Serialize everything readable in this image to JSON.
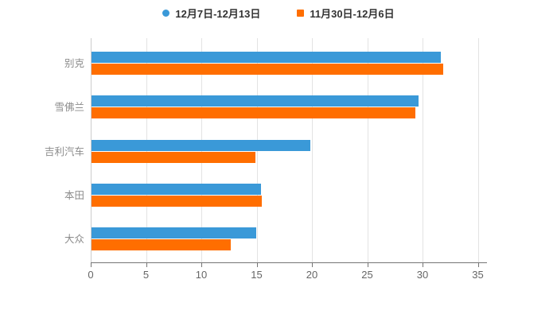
{
  "legend": {
    "items": [
      {
        "label": "12月7日-12月13日",
        "color": "#3A99D8",
        "marker": "circle"
      },
      {
        "label": "11月30日-12月6日",
        "color": "#FF6E00",
        "marker": "square"
      }
    ]
  },
  "chart_data": {
    "type": "bar",
    "orientation": "horizontal",
    "title": "",
    "categories": [
      "别克",
      "雪佛兰",
      "吉利汽车",
      "本田",
      "大众"
    ],
    "series": [
      {
        "name": "12月7日-12月13日",
        "color": "#3A99D8",
        "values": [
          31.6,
          29.6,
          19.8,
          15.3,
          14.9
        ]
      },
      {
        "name": "11月30日-12月6日",
        "color": "#FF6E00",
        "values": [
          31.8,
          29.3,
          14.8,
          15.4,
          12.6
        ]
      }
    ],
    "x_axis": {
      "min": 0,
      "max": 35,
      "tick_interval": 5,
      "ticks": [
        0,
        5,
        10,
        15,
        20,
        25,
        30,
        35
      ]
    },
    "grid": "on",
    "legend_position": "top",
    "colors": {
      "background": "#ffffff",
      "grid": "#e3e3e3",
      "axis_line": "#757575",
      "zero_line": "#cccccc",
      "tick_label": "#666666",
      "category_label": "#8c8c8c"
    }
  }
}
